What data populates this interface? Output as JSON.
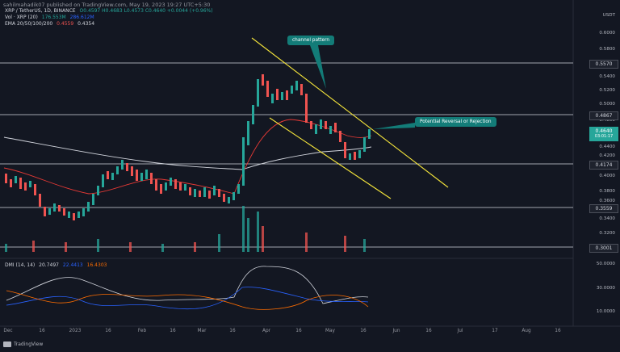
{
  "header": {
    "publisher_text": "sahilmahadik07 published on TradingView.com, May 19, 2023 19:27 UTC+5:30"
  },
  "symbol": {
    "title": "XRP / TetherUS, 1D, BINANCE",
    "ohlc": "O0.4597 H0.4683 L0.4573 C0.4640 +0.0044 (+0.96%)"
  },
  "indicators": {
    "vol": {
      "label": "Vol · XRP (20)",
      "v1": "176.553M",
      "v2": "286.612M"
    },
    "ema": {
      "label": "EMA 20/50/100/200",
      "v1": "0.4559",
      "v2": "0.4354"
    },
    "dmi": {
      "label": "DMI (14, 14)",
      "v1": "20.7497",
      "v2": "22.4413",
      "v3": "16.4303"
    }
  },
  "price_axis": {
    "currency": "USDT",
    "ticks": [
      "0.6000",
      "0.5800",
      "0.5400",
      "0.5200",
      "0.5000",
      "0.4800",
      "0.4400",
      "0.4200",
      "0.4000",
      "0.3800",
      "0.3600",
      "0.3400",
      "0.3200"
    ],
    "levels": [
      "0.5570",
      "0.4867",
      "0.4174",
      "0.3559",
      "0.3001"
    ],
    "current_price": "0.4640",
    "countdown": "03:01:17"
  },
  "dmi_axis": {
    "ticks": [
      "50.0000",
      "30.0000",
      "10.0000"
    ]
  },
  "time_axis": {
    "labels": [
      "Dec",
      "16",
      "2023",
      "16",
      "Feb",
      "16",
      "Mar",
      "16",
      "Apr",
      "16",
      "May",
      "16",
      "Jun",
      "16",
      "Jul",
      "17",
      "Aug",
      "16"
    ]
  },
  "annotations": {
    "channel": "channel pattern",
    "reversal": "Potential Reversal or Rejection"
  },
  "footer": {
    "brand": "TradingView"
  },
  "colors": {
    "background": "#131722",
    "up": "#26a69a",
    "down": "#ef5350",
    "channel": "#f5e53b",
    "callout": "#137c78",
    "ema_fast": "#e53935",
    "ema_slow": "#d1d4dc"
  }
}
